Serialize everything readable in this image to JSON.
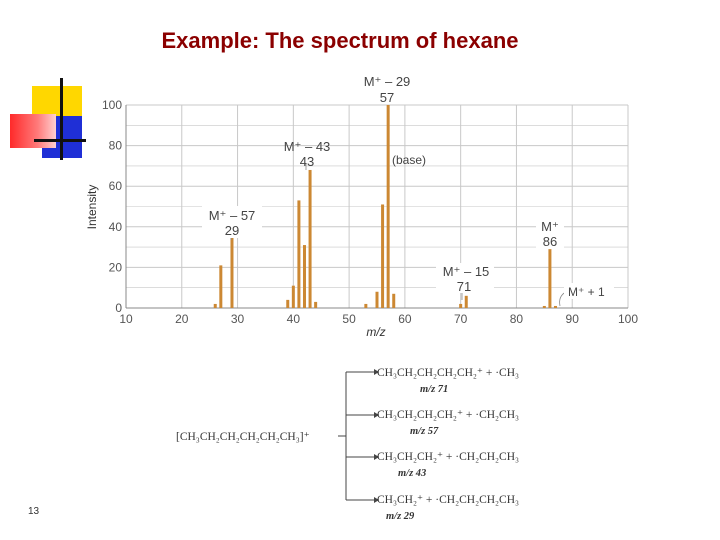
{
  "slide": {
    "title": "Example: The spectrum of hexane",
    "page_number": "13",
    "colors": {
      "title": "#8b0000",
      "bar": "#cc8833",
      "grid": "#c8c8c8"
    }
  },
  "chart_data": {
    "type": "bar",
    "xlabel": "m/z",
    "ylabel": "Intensity",
    "xlim": [
      10,
      100
    ],
    "ylim": [
      0,
      100
    ],
    "xticks": [
      10,
      20,
      30,
      40,
      50,
      60,
      70,
      80,
      90,
      100
    ],
    "yticks": [
      0,
      20,
      40,
      60,
      80,
      100
    ],
    "grid": true,
    "peaks": [
      {
        "mz": 26,
        "value": 2
      },
      {
        "mz": 27,
        "value": 21
      },
      {
        "mz": 29,
        "value": 35
      },
      {
        "mz": 39,
        "value": 4
      },
      {
        "mz": 40,
        "value": 11
      },
      {
        "mz": 41,
        "value": 53
      },
      {
        "mz": 42,
        "value": 31
      },
      {
        "mz": 43,
        "value": 68
      },
      {
        "mz": 44,
        "value": 3
      },
      {
        "mz": 53,
        "value": 2
      },
      {
        "mz": 55,
        "value": 8
      },
      {
        "mz": 56,
        "value": 51
      },
      {
        "mz": 57,
        "value": 100
      },
      {
        "mz": 58,
        "value": 7
      },
      {
        "mz": 70,
        "value": 2
      },
      {
        "mz": 71,
        "value": 6
      },
      {
        "mz": 85,
        "value": 1
      },
      {
        "mz": 86,
        "value": 29
      },
      {
        "mz": 87,
        "value": 1
      }
    ],
    "annotations": [
      {
        "id": "m29",
        "line1": "M⁺ – 29",
        "line2": "57",
        "mz": 57
      },
      {
        "id": "m43",
        "line1": "M⁺ – 43",
        "line2": "43",
        "mz": 43
      },
      {
        "id": "base",
        "text": "(base)"
      },
      {
        "id": "m57",
        "line1": "M⁺ – 57",
        "line2": "29",
        "mz": 29
      },
      {
        "id": "m15",
        "line1": "M⁺ – 15",
        "line2": "71",
        "mz": 71
      },
      {
        "id": "mol",
        "line1": "M⁺",
        "line2": "86",
        "mz": 86
      },
      {
        "id": "mp1",
        "text": "M⁺ + 1",
        "mz": 87
      }
    ]
  },
  "fragmentation": {
    "parent": "[CH₃CH₂CH₂CH₂CH₂CH₃]⁺",
    "pathways": [
      {
        "products": "CH₃CH₂CH₂CH₂CH₂⁺ + ·CH₃",
        "mz_label": "m/z 71"
      },
      {
        "products": "CH₃CH₂CH₂CH₂⁺ + ·CH₂CH₃",
        "mz_label": "m/z 57"
      },
      {
        "products": "CH₃CH₂CH₂⁺ + ·CH₂CH₂CH₃",
        "mz_label": "m/z 43"
      },
      {
        "products": "CH₃CH₂⁺ + ·CH₂CH₂CH₂CH₃",
        "mz_label": "m/z 29"
      }
    ]
  }
}
